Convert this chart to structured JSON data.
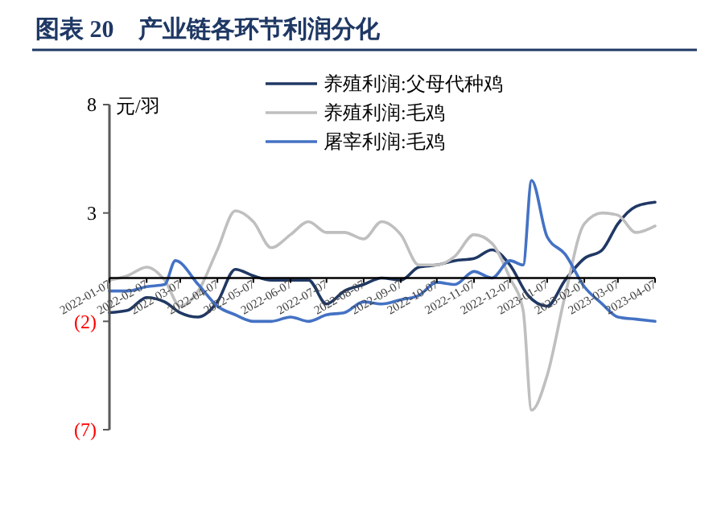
{
  "chart_data": {
    "type": "line",
    "title": "图表 20　产业链各环节利润分化",
    "ylabel": "元/羽",
    "xlim": [
      "2022-01-07",
      "2023-04-07"
    ],
    "xticks": [
      {
        "value": "2022-01-07",
        "label": "2022-01-07"
      },
      {
        "value": "2022-02-07",
        "label": "2022-02-07"
      },
      {
        "value": "2022-03-07",
        "label": "2022-03-07"
      },
      {
        "value": "2022-04-07",
        "label": "2022-04-07"
      },
      {
        "value": "2022-05-07",
        "label": "2022-05-07"
      },
      {
        "value": "2022-06-07",
        "label": "2022-06-07"
      },
      {
        "value": "2022-07-07",
        "label": "2022-07-07"
      },
      {
        "value": "2022-08-07",
        "label": "2022-08-07"
      },
      {
        "value": "2022-09-07",
        "label": "2022-09-07"
      },
      {
        "value": "2022-10-07",
        "label": "2022-10-07"
      },
      {
        "value": "2022-11-07",
        "label": "2022-11-07"
      },
      {
        "value": "2022-12-07",
        "label": "2022-12-07"
      },
      {
        "value": "2023-01-07",
        "label": "2023-01-07"
      },
      {
        "value": "2023-02-07",
        "label": "2023-02-07"
      },
      {
        "value": "2023-03-07",
        "label": "2023-03-07"
      },
      {
        "value": "2023-04-07",
        "label": "2023-04-07"
      }
    ],
    "ylim": [
      -7,
      8
    ],
    "yticks": [
      8,
      3,
      {
        "value": -2,
        "label": "(2)"
      },
      {
        "value": -7,
        "label": "(7)"
      }
    ],
    "grid": false,
    "legend": "top",
    "line_style": "solid",
    "marker": "none",
    "series": [
      {
        "name": "养殖利润:父母代种鸡",
        "color": "#203864",
        "x": [
          "2022-01-07",
          "2022-01-22",
          "2022-02-07",
          "2022-02-22",
          "2022-03-07",
          "2022-03-22",
          "2022-04-07",
          "2022-04-22",
          "2022-05-07",
          "2022-05-22",
          "2022-06-07",
          "2022-06-22",
          "2022-07-07",
          "2022-07-22",
          "2022-08-07",
          "2022-08-22",
          "2022-09-07",
          "2022-09-22",
          "2022-10-07",
          "2022-10-22",
          "2022-11-07",
          "2022-11-22",
          "2022-12-07",
          "2022-12-22",
          "2023-01-07",
          "2023-01-22",
          "2023-02-07",
          "2023-02-22",
          "2023-03-07",
          "2023-03-22",
          "2023-04-07"
        ],
        "values": [
          -1.6,
          -1.5,
          -0.9,
          -1.1,
          -1.6,
          -1.8,
          -1.1,
          0.4,
          0.1,
          -0.1,
          -0.1,
          -0.1,
          -1.2,
          -0.6,
          -0.3,
          0,
          -0.1,
          0.5,
          0.6,
          0.8,
          0.9,
          1.3,
          0.6,
          -0.8,
          -1.3,
          -0.1,
          0.9,
          1.3,
          2.5,
          3.3,
          3.5
        ]
      },
      {
        "name": "养殖利润:毛鸡",
        "color": "#bfbfbf",
        "x": [
          "2022-01-07",
          "2022-01-22",
          "2022-02-07",
          "2022-02-22",
          "2022-03-07",
          "2022-03-22",
          "2022-04-07",
          "2022-04-22",
          "2022-05-07",
          "2022-05-22",
          "2022-06-07",
          "2022-06-22",
          "2022-07-07",
          "2022-07-22",
          "2022-08-07",
          "2022-08-22",
          "2022-09-07",
          "2022-09-22",
          "2022-10-07",
          "2022-10-22",
          "2022-11-07",
          "2022-11-22",
          "2022-12-07",
          "2022-12-18",
          "2022-12-25",
          "2023-01-07",
          "2023-01-22",
          "2023-02-07",
          "2023-02-22",
          "2023-03-07",
          "2023-03-22",
          "2023-04-07"
        ],
        "values": [
          -0.1,
          0.1,
          0.5,
          -0.1,
          -1.3,
          -0.6,
          1.3,
          3.1,
          2.6,
          1.4,
          2.0,
          2.6,
          2.1,
          2.1,
          1.8,
          2.6,
          2.0,
          0.6,
          0.6,
          1.0,
          2.0,
          1.6,
          0,
          -1.5,
          -6.1,
          -4.5,
          -0.8,
          2.5,
          3.0,
          2.9,
          2.1,
          2.4
        ]
      },
      {
        "name": "屠宰利润:毛鸡",
        "color": "#4472c4",
        "x": [
          "2022-01-07",
          "2022-01-22",
          "2022-02-07",
          "2022-02-22",
          "2022-03-03",
          "2022-03-22",
          "2022-04-07",
          "2022-04-22",
          "2022-05-07",
          "2022-05-22",
          "2022-06-07",
          "2022-06-22",
          "2022-07-07",
          "2022-07-22",
          "2022-08-07",
          "2022-08-22",
          "2022-09-07",
          "2022-09-22",
          "2022-10-07",
          "2022-10-22",
          "2022-11-07",
          "2022-11-22",
          "2022-12-07",
          "2022-12-18",
          "2022-12-25",
          "2023-01-07",
          "2023-01-22",
          "2023-02-07",
          "2023-02-22",
          "2023-03-07",
          "2023-03-22",
          "2023-04-07"
        ],
        "values": [
          -0.6,
          -0.6,
          -0.4,
          -0.3,
          0.8,
          -0.3,
          -1.3,
          -1.7,
          -2.0,
          -2.0,
          -1.8,
          -2.0,
          -1.7,
          -1.6,
          -1.1,
          -1.2,
          -1.0,
          -0.8,
          -0.2,
          -0.3,
          0.3,
          0,
          0.8,
          0.6,
          4.5,
          1.9,
          1.1,
          -0.4,
          -1.2,
          -1.8,
          -1.9,
          -2.0
        ]
      }
    ]
  }
}
